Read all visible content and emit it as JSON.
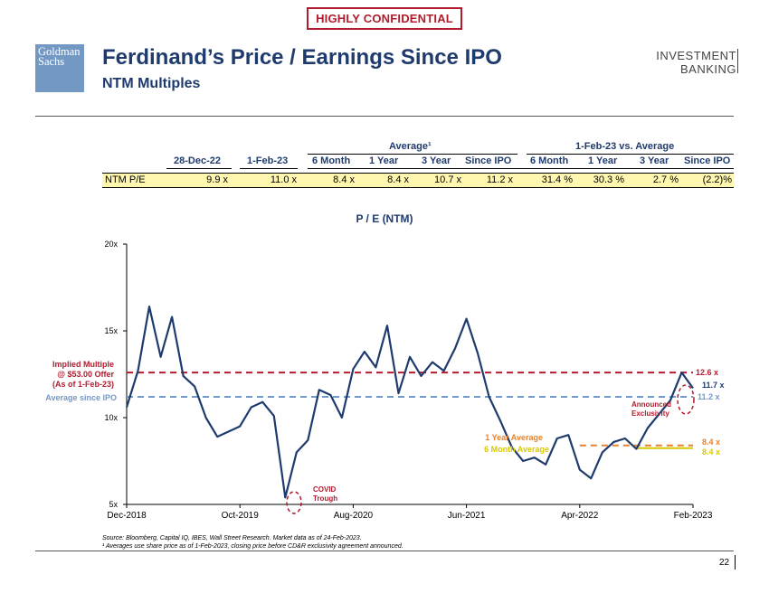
{
  "banner": "HIGHLY CONFIDENTIAL",
  "logo": {
    "line1": "Goldman",
    "line2": "Sachs"
  },
  "title": "Ferdinand’s Price / Earnings Since IPO",
  "subtitle": "NTM Multiples",
  "division": {
    "line1": "INVESTMENT",
    "line2": "BANKING"
  },
  "table": {
    "group_average": "Average¹",
    "group_vs": "1-Feb-23 vs. Average",
    "columns": [
      "28-Dec-22",
      "1-Feb-23",
      "6 Month",
      "1 Year",
      "3 Year",
      "Since IPO",
      "6 Month",
      "1 Year",
      "3 Year",
      "Since IPO"
    ],
    "row_label": "NTM P/E",
    "row_values": [
      "9.9 x",
      "11.0 x",
      "8.4 x",
      "8.4 x",
      "10.7 x",
      "11.2 x",
      "31.4 %",
      "30.3 %",
      "2.7 %",
      "(2.2)%"
    ]
  },
  "page_number": "22",
  "source_line1": "Source: Bloomberg, Capital IQ, IBES, Wall Street Research. Market data as of 24-Feb-2023.",
  "source_line2": "¹ Averages use share price as of 1-Feb-2023, closing price before CD&R exclusivity agreement announced.",
  "chart_data": {
    "type": "line",
    "title": "P / E (NTM)",
    "xlabel": "",
    "ylabel": "",
    "ylim": [
      5,
      20
    ],
    "y_ticks": [
      "5x",
      "10x",
      "15x",
      "20x"
    ],
    "x_ticks": [
      "Dec-2018",
      "Oct-2019",
      "Aug-2020",
      "Jun-2021",
      "Apr-2022",
      "Feb-2023"
    ],
    "series": [
      {
        "name": "NTM P/E",
        "color": "#1f3b6e",
        "x": [
          0,
          0.02,
          0.04,
          0.06,
          0.08,
          0.1,
          0.12,
          0.14,
          0.16,
          0.18,
          0.2,
          0.22,
          0.24,
          0.26,
          0.28,
          0.3,
          0.32,
          0.34,
          0.36,
          0.38,
          0.4,
          0.42,
          0.44,
          0.46,
          0.48,
          0.5,
          0.52,
          0.54,
          0.56,
          0.58,
          0.6,
          0.62,
          0.64,
          0.66,
          0.68,
          0.7,
          0.72,
          0.74,
          0.76,
          0.78,
          0.8,
          0.82,
          0.84,
          0.86,
          0.88,
          0.9,
          0.92,
          0.94,
          0.96,
          0.98,
          1.0
        ],
        "values": [
          10.6,
          12.7,
          16.4,
          13.5,
          15.8,
          12.4,
          11.8,
          10.0,
          8.9,
          9.2,
          9.5,
          10.6,
          10.9,
          10.1,
          5.4,
          8.0,
          8.7,
          11.6,
          11.3,
          10.0,
          12.8,
          13.8,
          12.9,
          15.3,
          11.4,
          13.5,
          12.4,
          13.2,
          12.7,
          14.0,
          15.7,
          13.7,
          11.2,
          9.8,
          8.3,
          7.5,
          7.7,
          7.3,
          8.8,
          9.0,
          7.0,
          6.5,
          8.0,
          8.6,
          8.8,
          8.2,
          9.4,
          10.2,
          11.0,
          12.6,
          11.7
        ]
      }
    ],
    "reference_lines": [
      {
        "label": "Implied Multiple @ $53.00 Offer (As of 1-Feb-23)",
        "value": 12.6,
        "value_label": "12.6 x",
        "color": "#b01c2e"
      },
      {
        "label": "Average since IPO",
        "value": 11.2,
        "value_label": "11.2 x",
        "color": "#7498c4"
      },
      {
        "label": "1 Year Average",
        "value": 8.4,
        "value_label": "8.4 x",
        "color": "#e8822c"
      },
      {
        "label": "6 Month Average",
        "value": 8.4,
        "value_label": "8.4 x",
        "color": "#d8c800"
      }
    ],
    "last_value_label": "11.7 x",
    "annotations": [
      {
        "text_line1": "COVID",
        "text_line2": "Trough"
      },
      {
        "text_line1": "Announced",
        "text_line2": "Exclusivity"
      }
    ],
    "implied_label": {
      "line1": "Implied Multiple",
      "line2": "@ $53.00 Offer",
      "line3": "(As of 1-Feb-23)"
    }
  }
}
